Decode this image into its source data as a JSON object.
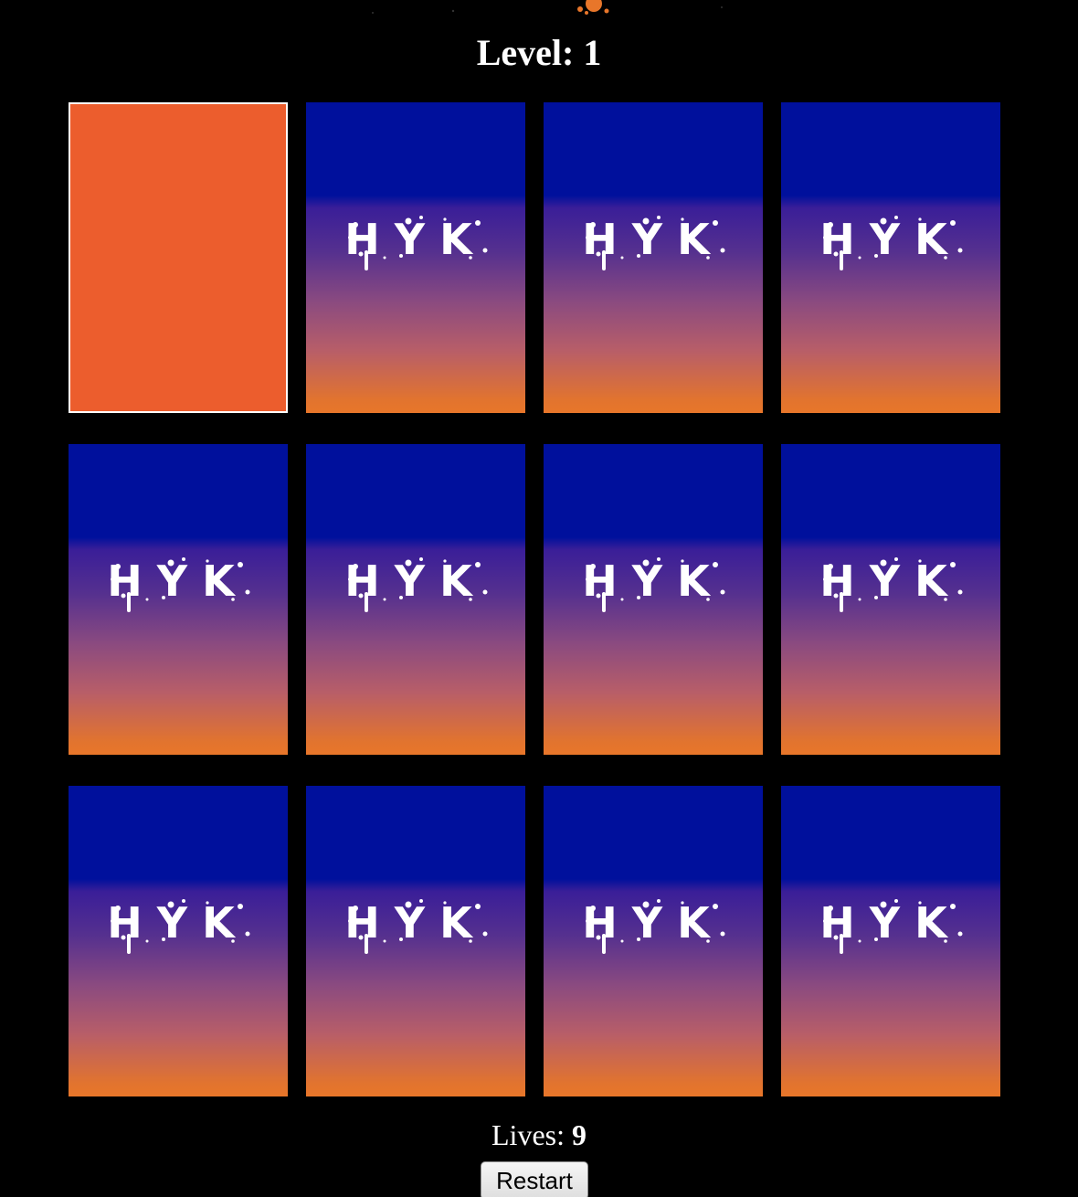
{
  "header": {
    "level_label": "Level:",
    "level_value": "1"
  },
  "cards": [
    {
      "state": "face-up",
      "color": "#ec5d2d"
    },
    {
      "state": "face-down",
      "logo_text": "HYK"
    },
    {
      "state": "face-down",
      "logo_text": "HYK"
    },
    {
      "state": "face-down",
      "logo_text": "HYK"
    },
    {
      "state": "face-down",
      "logo_text": "HYK"
    },
    {
      "state": "face-down",
      "logo_text": "HYK"
    },
    {
      "state": "face-down",
      "logo_text": "HYK"
    },
    {
      "state": "face-down",
      "logo_text": "HYK"
    },
    {
      "state": "face-down",
      "logo_text": "HYK"
    },
    {
      "state": "face-down",
      "logo_text": "HYK"
    },
    {
      "state": "face-down",
      "logo_text": "HYK"
    },
    {
      "state": "face-down",
      "logo_text": "HYK"
    }
  ],
  "footer": {
    "lives_label": "Lives:",
    "lives_value": "9",
    "restart_label": "Restart"
  },
  "colors": {
    "background": "#000000",
    "card_face_up": "#ec5d2d",
    "card_back_top": "#00109c",
    "card_back_bottom": "#e8762a",
    "splash_accent": "#e8762a"
  }
}
